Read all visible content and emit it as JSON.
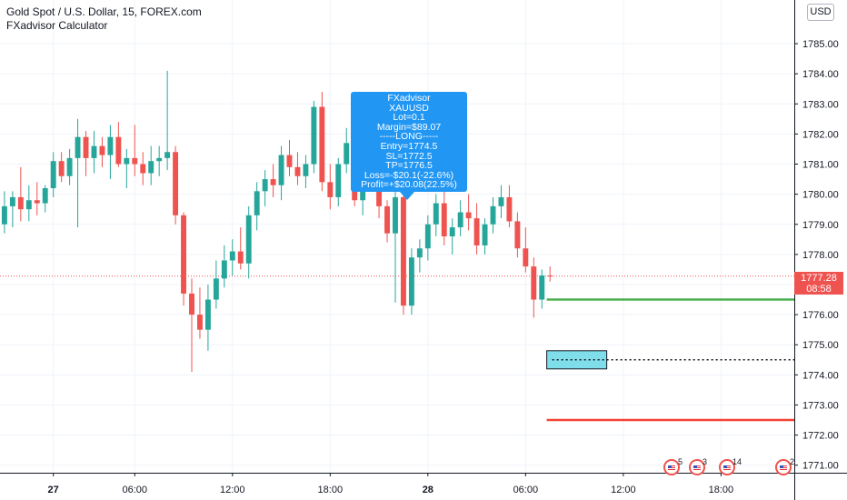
{
  "header": {
    "symbol_title": "Gold Spot / U.S. Dollar, 15, FOREX.com",
    "indicator_name": "FXadvisor Calculator"
  },
  "price_axis": {
    "currency_label": "USD",
    "current_price": "1777.28",
    "countdown": "08:58"
  },
  "tooltip": {
    "lines": [
      "FXadvisor",
      "XAUUSD",
      "Lot=0.1",
      "Margin=$89.07",
      "-----LONG-----",
      "Entry=1774.5",
      "SL=1772.5",
      "TP=1776.5",
      "Loss=-$20.1(-22.6%)",
      "Profit=+$20.08(22.5%)"
    ]
  },
  "economic_events": [
    {
      "icon": "us-flag-icon",
      "count": "5"
    },
    {
      "icon": "us-flag-icon",
      "count": "3"
    },
    {
      "icon": "us-flag-icon",
      "count": "14"
    },
    {
      "icon": "us-flag-icon",
      "count": "2"
    }
  ],
  "colors": {
    "up": "#26a69a",
    "down": "#ef5350",
    "tp_line": "#4caf50",
    "sl_line": "#f44336",
    "entry_box": "#80deea",
    "tooltip": "#2196f3",
    "grid": "#f0f3fa"
  },
  "chart_data": {
    "type": "candlestick",
    "ylim": [
      1770.75,
      1786.45
    ],
    "y_ticks": [
      1771,
      1772,
      1773,
      1774,
      1775,
      1776,
      1777,
      1778,
      1779,
      1780,
      1781,
      1782,
      1783,
      1784,
      1785
    ],
    "y_tick_labels": [
      "1771.00",
      "1772.00",
      "1773.00",
      "1774.00",
      "1775.00",
      "1776.00",
      "1777.00",
      "1778.00",
      "1779.00",
      "1780.00",
      "1781.00",
      "1782.00",
      "1783.00",
      "1784.00",
      "1785.00"
    ],
    "x_ticks": [
      {
        "bar": 6,
        "label": "27"
      },
      {
        "bar": 16,
        "label": "06:00"
      },
      {
        "bar": 28,
        "label": "12:00"
      },
      {
        "bar": 40,
        "label": "18:00"
      },
      {
        "bar": 52,
        "label": "28"
      },
      {
        "bar": 64,
        "label": "06:00"
      },
      {
        "bar": 76,
        "label": "12:00"
      },
      {
        "bar": 88,
        "label": "18:00"
      }
    ],
    "bar_minutes": 30,
    "first_bar": "26 21:00",
    "x_window_bars": [
      -0.55,
      97.0
    ],
    "last_price": 1777.28,
    "levels": {
      "entry": 1774.5,
      "take_profit": 1776.5,
      "stop_loss": 1772.5
    },
    "candles": [
      {
        "o": 1779.0,
        "h": 1780.1,
        "l": 1778.7,
        "c": 1779.6
      },
      {
        "o": 1779.6,
        "h": 1780.1,
        "l": 1778.9,
        "c": 1779.9
      },
      {
        "o": 1779.9,
        "h": 1780.9,
        "l": 1779.1,
        "c": 1779.5
      },
      {
        "o": 1779.5,
        "h": 1780.3,
        "l": 1779.1,
        "c": 1779.8
      },
      {
        "o": 1779.8,
        "h": 1780.4,
        "l": 1779.3,
        "c": 1779.7
      },
      {
        "o": 1779.7,
        "h": 1780.3,
        "l": 1779.4,
        "c": 1780.2
      },
      {
        "o": 1780.2,
        "h": 1781.4,
        "l": 1779.9,
        "c": 1781.1
      },
      {
        "o": 1781.1,
        "h": 1781.4,
        "l": 1780.4,
        "c": 1780.6
      },
      {
        "o": 1780.6,
        "h": 1781.5,
        "l": 1780.3,
        "c": 1781.2
      },
      {
        "o": 1781.2,
        "h": 1782.5,
        "l": 1778.9,
        "c": 1781.9
      },
      {
        "o": 1781.9,
        "h": 1782.1,
        "l": 1780.6,
        "c": 1781.2
      },
      {
        "o": 1781.2,
        "h": 1782.1,
        "l": 1780.7,
        "c": 1781.6
      },
      {
        "o": 1781.6,
        "h": 1781.9,
        "l": 1780.9,
        "c": 1781.3
      },
      {
        "o": 1781.3,
        "h": 1782.3,
        "l": 1780.5,
        "c": 1781.9
      },
      {
        "o": 1781.9,
        "h": 1782.4,
        "l": 1780.9,
        "c": 1781.0
      },
      {
        "o": 1781.0,
        "h": 1781.5,
        "l": 1780.2,
        "c": 1781.2
      },
      {
        "o": 1781.2,
        "h": 1782.3,
        "l": 1780.6,
        "c": 1781.0
      },
      {
        "o": 1781.0,
        "h": 1781.4,
        "l": 1780.3,
        "c": 1780.7
      },
      {
        "o": 1780.7,
        "h": 1781.6,
        "l": 1780.3,
        "c": 1781.1
      },
      {
        "o": 1781.1,
        "h": 1781.6,
        "l": 1780.6,
        "c": 1781.2
      },
      {
        "o": 1781.2,
        "h": 1784.1,
        "l": 1780.8,
        "c": 1781.4
      },
      {
        "o": 1781.4,
        "h": 1781.6,
        "l": 1779.0,
        "c": 1779.3
      },
      {
        "o": 1779.3,
        "h": 1779.4,
        "l": 1776.3,
        "c": 1776.7
      },
      {
        "o": 1776.7,
        "h": 1777.2,
        "l": 1774.1,
        "c": 1776.0
      },
      {
        "o": 1776.0,
        "h": 1776.9,
        "l": 1775.2,
        "c": 1775.5
      },
      {
        "o": 1775.5,
        "h": 1777.0,
        "l": 1774.8,
        "c": 1776.5
      },
      {
        "o": 1776.5,
        "h": 1777.8,
        "l": 1776.2,
        "c": 1777.2
      },
      {
        "o": 1777.2,
        "h": 1778.3,
        "l": 1776.9,
        "c": 1777.8
      },
      {
        "o": 1777.8,
        "h": 1778.5,
        "l": 1777.3,
        "c": 1778.1
      },
      {
        "o": 1778.1,
        "h": 1778.9,
        "l": 1777.5,
        "c": 1777.7
      },
      {
        "o": 1777.7,
        "h": 1779.6,
        "l": 1777.2,
        "c": 1779.3
      },
      {
        "o": 1779.3,
        "h": 1780.4,
        "l": 1778.8,
        "c": 1780.1
      },
      {
        "o": 1780.1,
        "h": 1780.8,
        "l": 1779.6,
        "c": 1780.5
      },
      {
        "o": 1780.5,
        "h": 1781.0,
        "l": 1779.9,
        "c": 1780.3
      },
      {
        "o": 1780.3,
        "h": 1781.6,
        "l": 1779.8,
        "c": 1781.3
      },
      {
        "o": 1781.3,
        "h": 1781.8,
        "l": 1780.6,
        "c": 1780.9
      },
      {
        "o": 1780.9,
        "h": 1781.4,
        "l": 1780.3,
        "c": 1780.6
      },
      {
        "o": 1780.6,
        "h": 1781.3,
        "l": 1780.2,
        "c": 1781.0
      },
      {
        "o": 1781.0,
        "h": 1783.1,
        "l": 1780.7,
        "c": 1782.9
      },
      {
        "o": 1782.9,
        "h": 1783.4,
        "l": 1780.1,
        "c": 1780.4
      },
      {
        "o": 1780.4,
        "h": 1781.0,
        "l": 1779.5,
        "c": 1779.9
      },
      {
        "o": 1779.9,
        "h": 1781.2,
        "l": 1779.6,
        "c": 1781.0
      },
      {
        "o": 1781.0,
        "h": 1782.2,
        "l": 1780.7,
        "c": 1781.7
      },
      {
        "o": 1781.7,
        "h": 1781.9,
        "l": 1779.6,
        "c": 1779.8
      },
      {
        "o": 1779.8,
        "h": 1781.4,
        "l": 1779.3,
        "c": 1781.1
      },
      {
        "o": 1781.1,
        "h": 1781.7,
        "l": 1780.5,
        "c": 1780.9
      },
      {
        "o": 1780.9,
        "h": 1781.5,
        "l": 1779.2,
        "c": 1779.6
      },
      {
        "o": 1779.6,
        "h": 1779.8,
        "l": 1778.4,
        "c": 1778.7
      },
      {
        "o": 1778.7,
        "h": 1780.2,
        "l": 1776.4,
        "c": 1779.9
      },
      {
        "o": 1779.9,
        "h": 1780.3,
        "l": 1776.0,
        "c": 1776.3
      },
      {
        "o": 1776.3,
        "h": 1778.2,
        "l": 1776.0,
        "c": 1777.9
      },
      {
        "o": 1777.9,
        "h": 1778.5,
        "l": 1777.4,
        "c": 1778.2
      },
      {
        "o": 1778.2,
        "h": 1779.3,
        "l": 1777.8,
        "c": 1779.0
      },
      {
        "o": 1779.0,
        "h": 1780.0,
        "l": 1778.6,
        "c": 1779.7
      },
      {
        "o": 1779.7,
        "h": 1780.1,
        "l": 1778.3,
        "c": 1778.6
      },
      {
        "o": 1778.6,
        "h": 1779.2,
        "l": 1778.0,
        "c": 1778.9
      },
      {
        "o": 1778.9,
        "h": 1779.8,
        "l": 1778.6,
        "c": 1779.4
      },
      {
        "o": 1779.4,
        "h": 1780.0,
        "l": 1778.8,
        "c": 1779.2
      },
      {
        "o": 1779.2,
        "h": 1779.7,
        "l": 1778.0,
        "c": 1778.3
      },
      {
        "o": 1778.3,
        "h": 1779.2,
        "l": 1778.0,
        "c": 1779.0
      },
      {
        "o": 1779.0,
        "h": 1779.9,
        "l": 1778.7,
        "c": 1779.6
      },
      {
        "o": 1779.6,
        "h": 1780.3,
        "l": 1779.2,
        "c": 1779.9
      },
      {
        "o": 1779.9,
        "h": 1780.3,
        "l": 1778.9,
        "c": 1779.1
      },
      {
        "o": 1779.1,
        "h": 1779.4,
        "l": 1777.9,
        "c": 1778.2
      },
      {
        "o": 1778.2,
        "h": 1778.9,
        "l": 1777.4,
        "c": 1777.6
      },
      {
        "o": 1777.6,
        "h": 1777.9,
        "l": 1775.9,
        "c": 1776.5
      },
      {
        "o": 1776.5,
        "h": 1777.5,
        "l": 1776.2,
        "c": 1777.3
      },
      {
        "o": 1777.3,
        "h": 1777.6,
        "l": 1777.1,
        "c": 1777.28
      }
    ]
  }
}
